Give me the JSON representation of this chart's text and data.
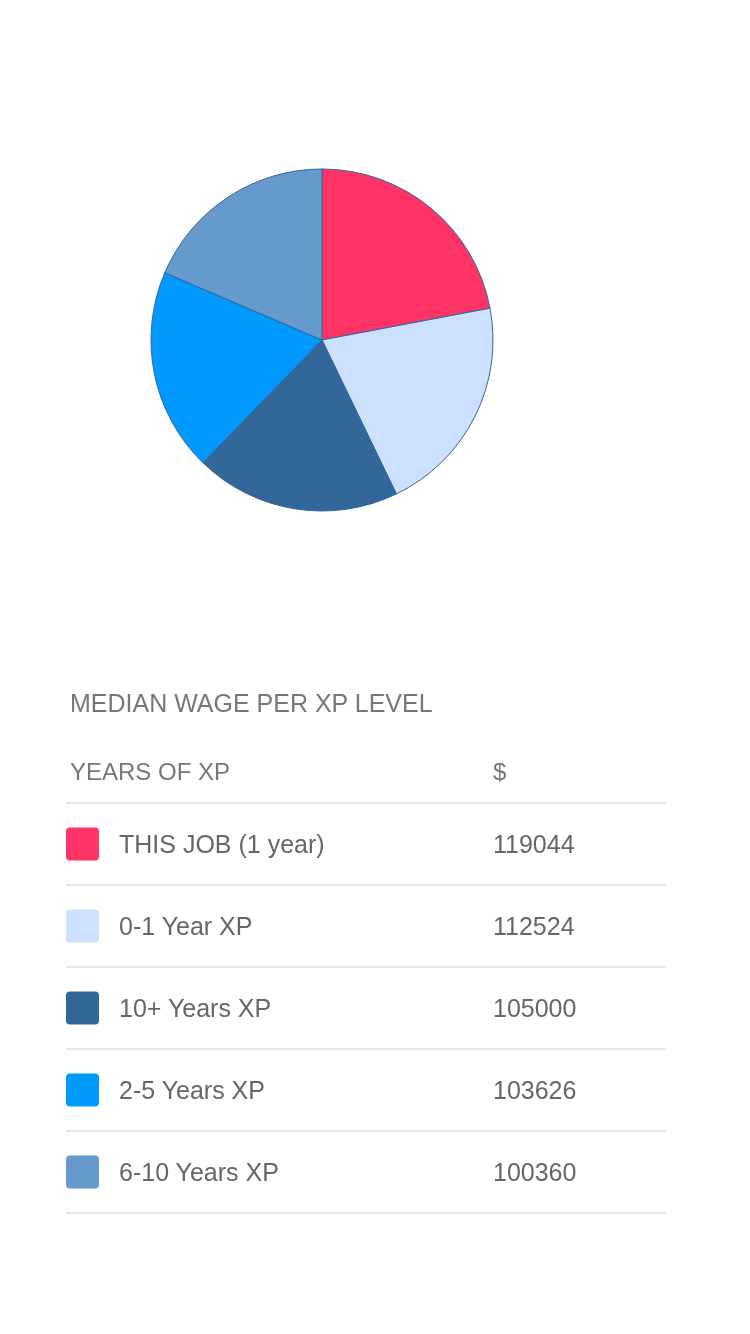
{
  "chart_data": {
    "type": "pie",
    "title": "MEDIAN WAGE PER XP LEVEL",
    "legend_title": "YEARS OF XP",
    "annotations": [
      "$"
    ],
    "categories": [
      "THIS JOB (1 year)",
      "0-1 Year XP",
      "10+ Years XP",
      "2-5 Years XP",
      "6-10 Years XP"
    ],
    "values": [
      119044,
      112524,
      105000,
      103626,
      100360
    ],
    "colors": [
      "#ff3366",
      "#cce0ff",
      "#336699",
      "#0099ff",
      "#6699cc"
    ],
    "data_labels": true,
    "legend": "bottom"
  }
}
